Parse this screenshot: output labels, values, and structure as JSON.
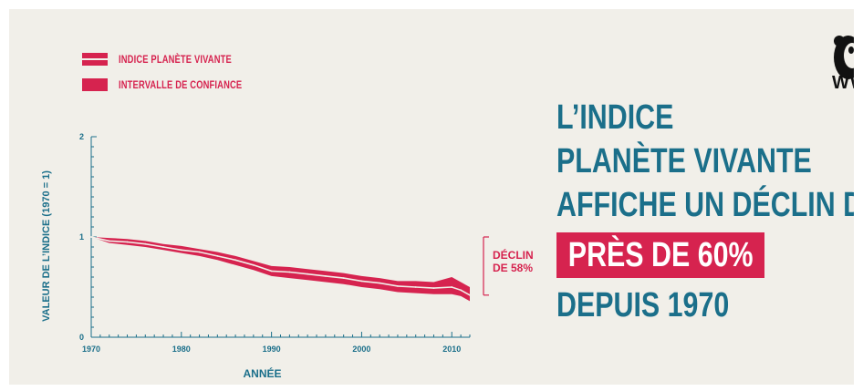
{
  "legend": {
    "index_label": "INDICE PLANÈTE VIVANTE",
    "interval_label": "INTERVALLE DE CONFIANCE"
  },
  "headline": {
    "line1": "L’INDICE",
    "line2": "PLANÈTE VIVANTE",
    "line3": "AFFICHE UN DÉCLIN DE",
    "highlight": "PRÈS DE 60%",
    "line5": "DEPUIS 1970"
  },
  "logo": {
    "text": "WW",
    "icon": "panda-icon"
  },
  "colors": {
    "accent": "#d6234f",
    "teal": "#1b6f8a",
    "background": "#f1efe9"
  },
  "chart_data": {
    "type": "line",
    "xlabel": "ANNÉE",
    "ylabel": "VALEUR DE L’INDICE (1970 = 1)",
    "xlim": [
      1970,
      2012
    ],
    "ylim": [
      0,
      2
    ],
    "x_ticks": [
      "1970",
      "1980",
      "1990",
      "2000",
      "2010"
    ],
    "y_ticks": [
      "0",
      "1",
      "2"
    ],
    "annotation": [
      "DÉCLIN",
      "DE 58%"
    ],
    "series": [
      {
        "x": [
          1970,
          1972,
          1974,
          1976,
          1978,
          1980,
          1982,
          1984,
          1986,
          1988,
          1990,
          1992,
          1994,
          1996,
          1998,
          2000,
          2002,
          2004,
          2006,
          2008,
          2010,
          2011,
          2012
        ],
        "values": [
          1.0,
          0.96,
          0.95,
          0.93,
          0.9,
          0.87,
          0.85,
          0.81,
          0.77,
          0.72,
          0.66,
          0.65,
          0.63,
          0.61,
          0.59,
          0.56,
          0.54,
          0.51,
          0.5,
          0.49,
          0.5,
          0.47,
          0.42
        ],
        "upper": [
          1.0,
          0.99,
          0.98,
          0.96,
          0.93,
          0.91,
          0.88,
          0.85,
          0.81,
          0.76,
          0.71,
          0.7,
          0.68,
          0.66,
          0.64,
          0.61,
          0.59,
          0.56,
          0.56,
          0.55,
          0.6,
          0.55,
          0.5
        ],
        "lower": [
          1.0,
          0.94,
          0.92,
          0.9,
          0.87,
          0.84,
          0.81,
          0.77,
          0.72,
          0.67,
          0.61,
          0.59,
          0.57,
          0.55,
          0.53,
          0.5,
          0.48,
          0.45,
          0.44,
          0.43,
          0.43,
          0.41,
          0.36
        ]
      }
    ]
  }
}
